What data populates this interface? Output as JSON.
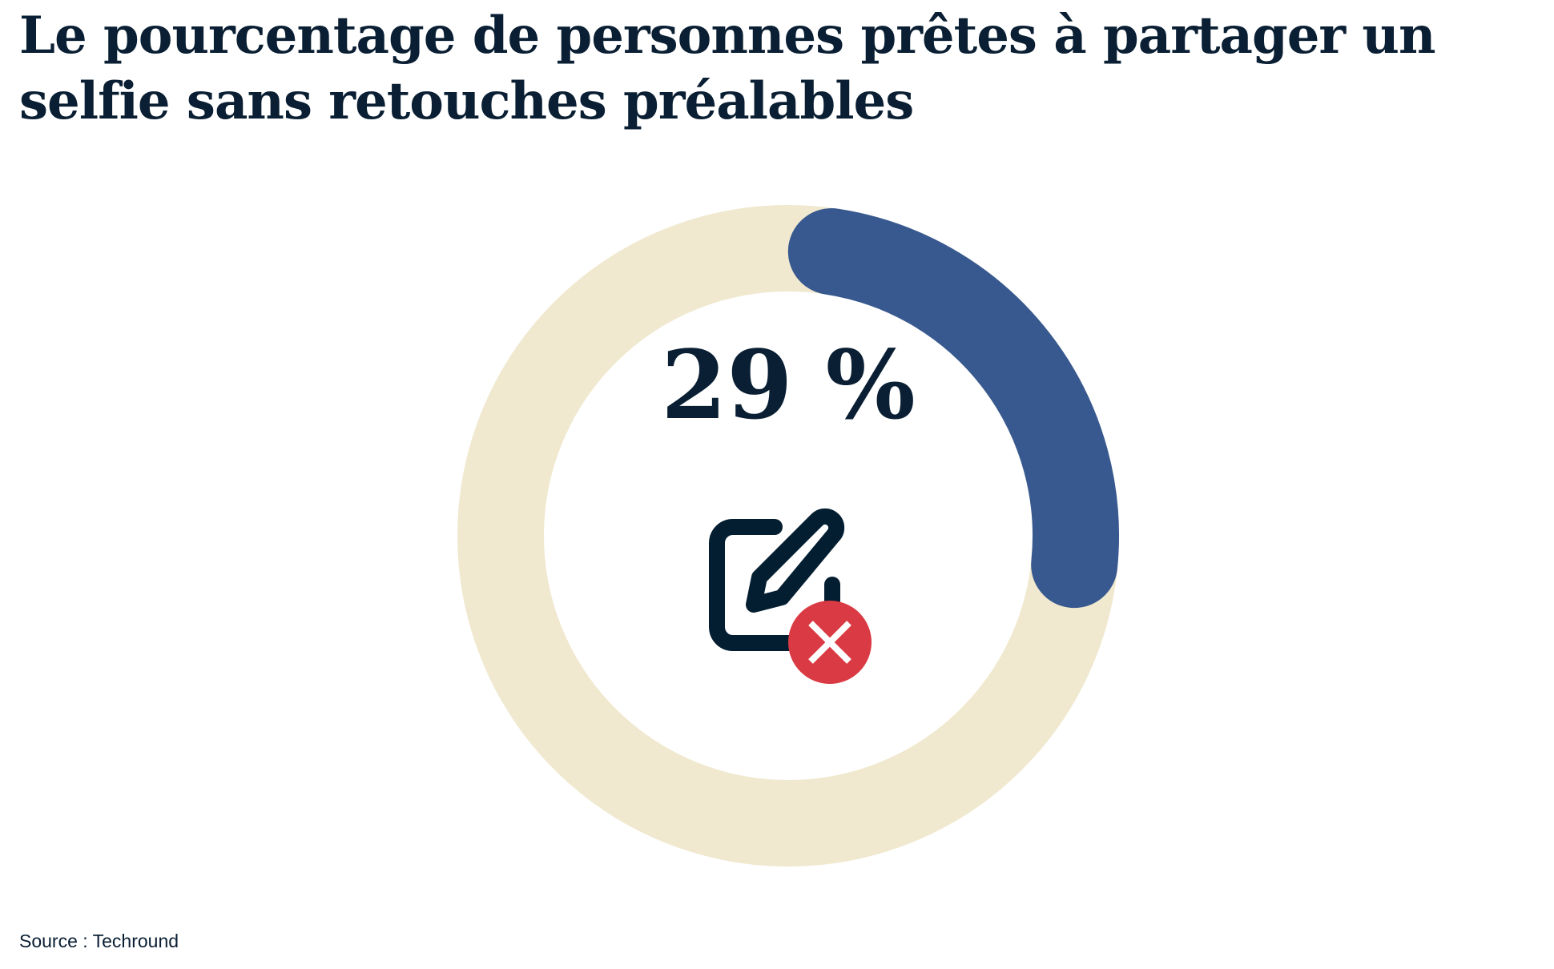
{
  "chart_data": {
    "type": "pie",
    "variant": "donut-gauge",
    "title": "Le pourcentage de personnes prêtes à partager un selfie sans retouches préalables",
    "value": 29,
    "max": 100,
    "value_label": "29 %",
    "colors": {
      "value": "#38598F",
      "track": "#F0E9CF",
      "text": "#0A1F33",
      "icon_badge": "#DA3A43"
    },
    "icon": "edit-pencil-with-red-x-icon"
  },
  "source": "Source : Techround"
}
